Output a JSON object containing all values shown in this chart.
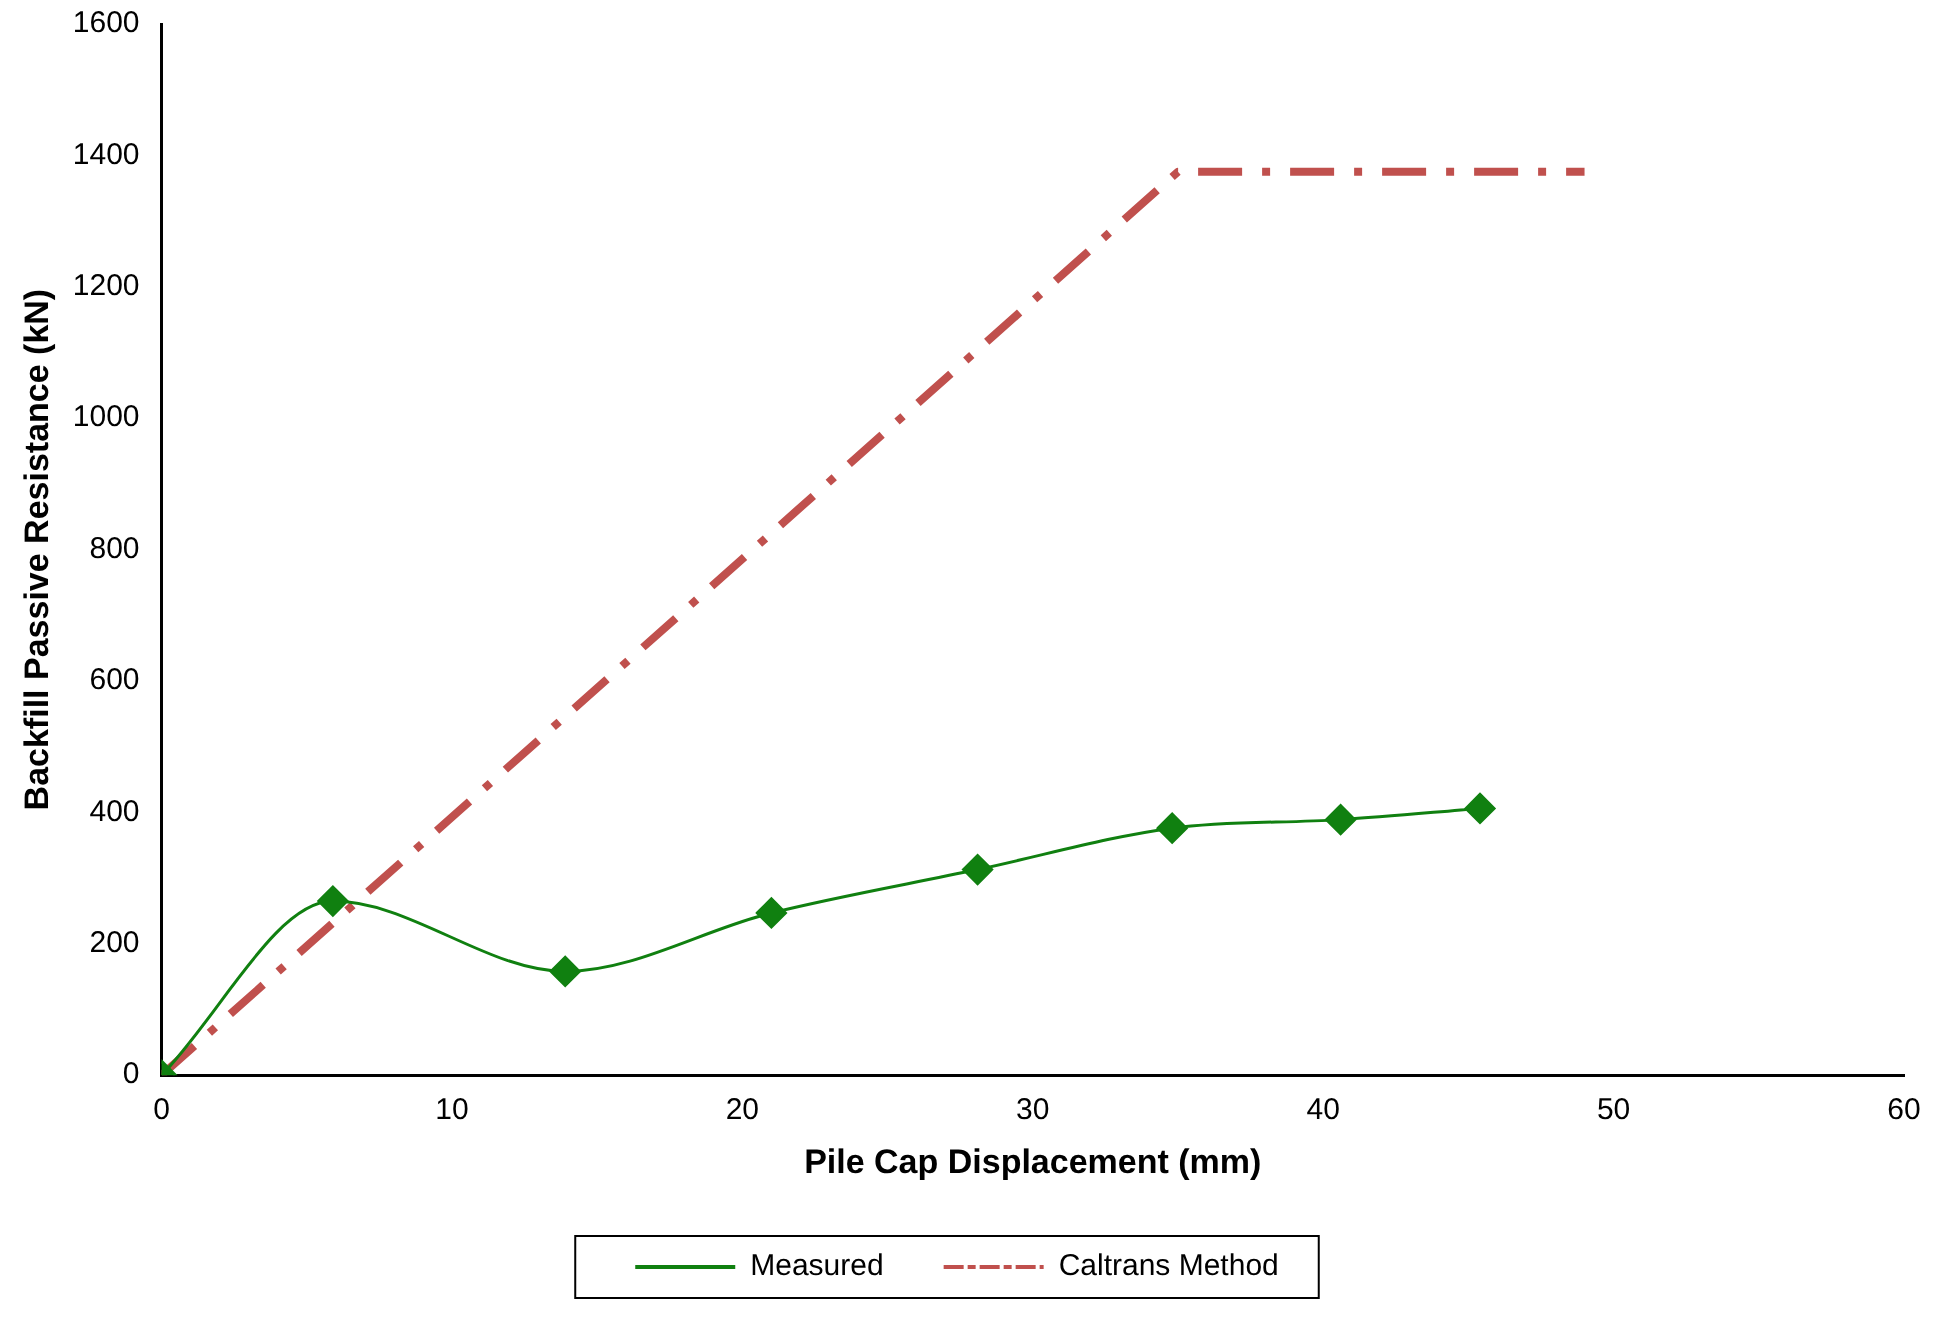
{
  "chart_data": {
    "type": "line",
    "xlabel": "Pile Cap Displacement (mm)",
    "ylabel": "Backfill Passive Resistance (kN)",
    "xlim": [
      0,
      60
    ],
    "xticks": [
      0,
      10,
      20,
      30,
      40,
      50,
      60
    ],
    "ylim": [
      0,
      1600
    ],
    "yticks": [
      0,
      200,
      400,
      600,
      800,
      1000,
      1200,
      1400,
      1600
    ],
    "grid": false,
    "legend": "bottom",
    "series": [
      {
        "name": "Measured",
        "color": "#108010",
        "marker": "diamond",
        "line_style": "solid",
        "x": [
          0,
          5.9,
          13.9,
          21,
          28.1,
          34.8,
          40.6,
          45.4
        ],
        "values": [
          0,
          265,
          158,
          247,
          313,
          376,
          389,
          406
        ]
      },
      {
        "name": "Caltrans Method",
        "color": "#c0504d",
        "marker": "none",
        "line_style": "dashed",
        "x": [
          0,
          35,
          49
        ],
        "values": [
          0,
          1375,
          1375
        ]
      }
    ]
  }
}
